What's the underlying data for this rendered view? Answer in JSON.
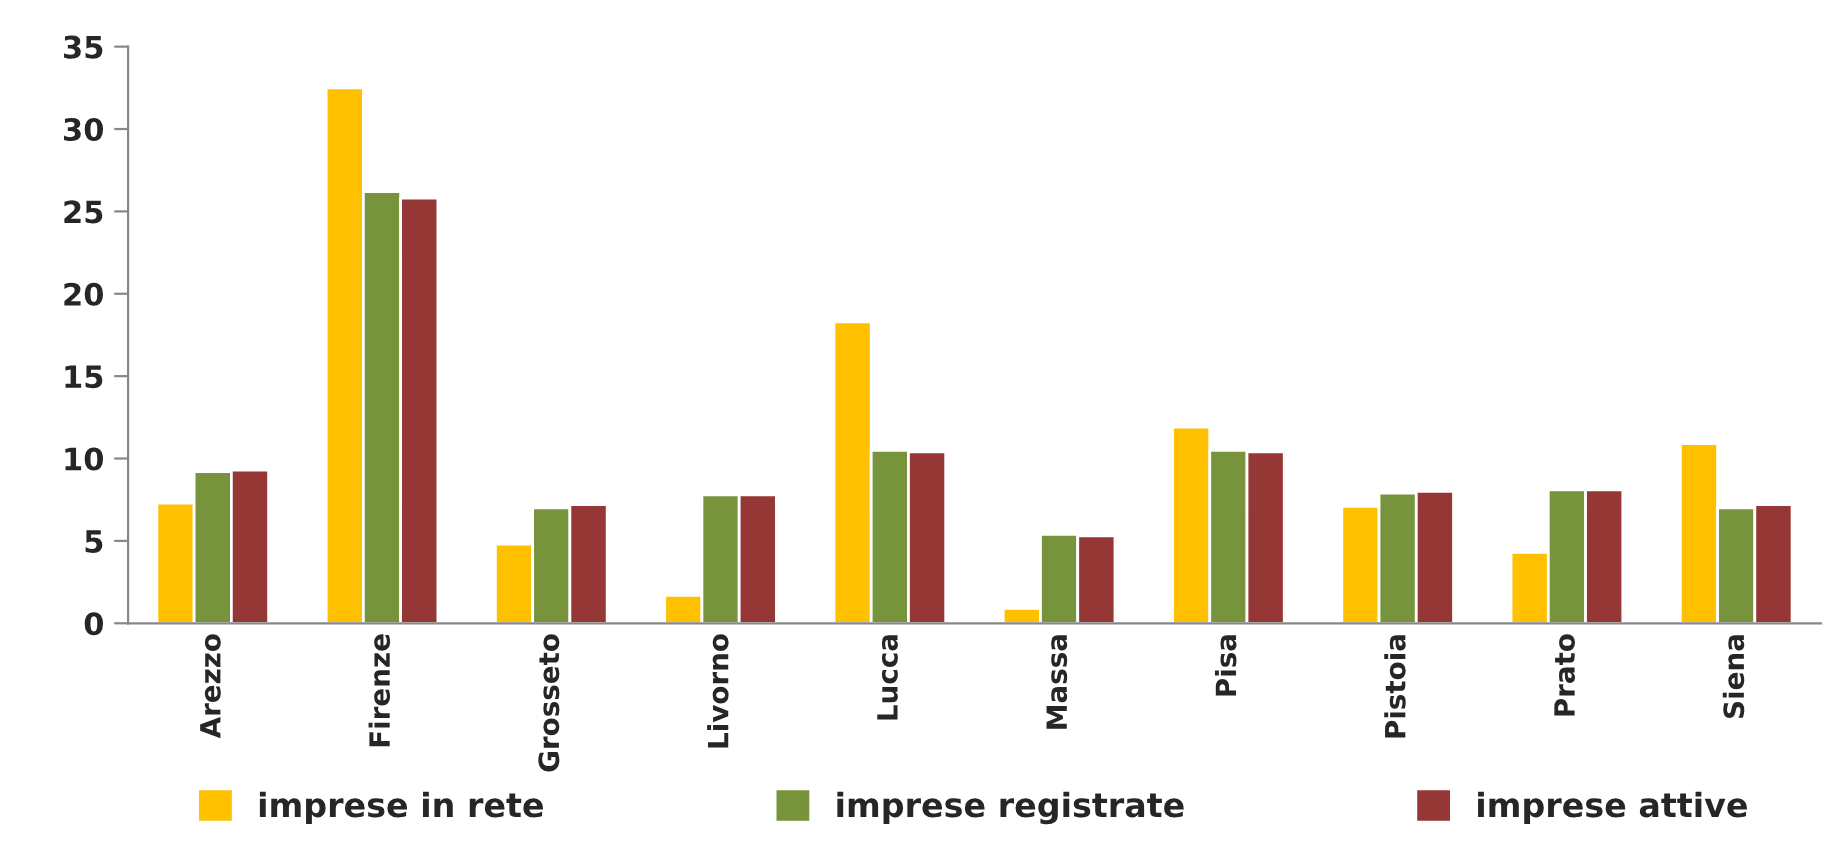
{
  "chart_data": {
    "type": "bar",
    "categories": [
      "Arezzo",
      "Firenze",
      "Grosseto",
      "Livorno",
      "Lucca",
      "Massa",
      "Pisa",
      "Pistoia",
      "Prato",
      "Siena"
    ],
    "series": [
      {
        "name": "imprese in rete",
        "color": "#ffc000",
        "values": [
          7.3,
          32.5,
          4.8,
          1.7,
          18.3,
          0.9,
          11.9,
          7.1,
          4.3,
          10.9
        ]
      },
      {
        "name": "imprese registrate",
        "color": "#77933c",
        "values": [
          9.2,
          26.2,
          7.0,
          7.8,
          10.5,
          5.4,
          10.5,
          7.9,
          8.1,
          7.0
        ]
      },
      {
        "name": "imprese attive",
        "color": "#953735",
        "values": [
          9.3,
          25.8,
          7.2,
          7.8,
          10.4,
          5.3,
          10.4,
          8.0,
          8.1,
          7.2
        ]
      }
    ],
    "ylim": [
      0,
      35
    ],
    "yticks": [
      0,
      5,
      10,
      15,
      20,
      25,
      30,
      35
    ],
    "grid": false,
    "legend": "bottom"
  }
}
